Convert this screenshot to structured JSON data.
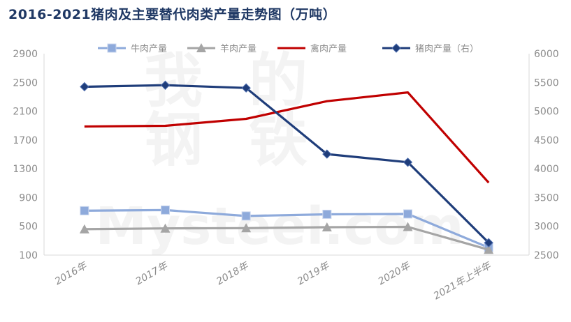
{
  "title": "2016-2021猪肉及主要替代肉类产量走势图（万吨）",
  "chart_data": {
    "type": "line",
    "categories": [
      "2016年",
      "2017年",
      "2018年",
      "2019年",
      "2020年",
      "2021年上半年"
    ],
    "left_axis": {
      "ylim": [
        100,
        2900
      ],
      "ticks": [
        100,
        500,
        900,
        1300,
        1700,
        2100,
        2500,
        2900
      ]
    },
    "right_axis": {
      "ylim": [
        2500,
        6000
      ],
      "ticks": [
        2500,
        3000,
        3500,
        4000,
        4500,
        5000,
        5500,
        6000
      ]
    },
    "legend_position": "top",
    "grid": false,
    "series": [
      {
        "name": "牛肉产量",
        "axis": "left",
        "color": "#8eaadb",
        "marker": "square",
        "values": [
          717,
          726,
          644,
          667,
          672,
          205
        ]
      },
      {
        "name": "羊肉产量",
        "axis": "left",
        "color": "#a5a5a5",
        "marker": "triangle",
        "values": [
          460,
          471,
          475,
          488,
          492,
          175
        ]
      },
      {
        "name": "禽肉产量",
        "axis": "left",
        "color": "#c00000",
        "marker": "none",
        "values": [
          1888,
          1897,
          1994,
          2239,
          2361,
          1107
        ]
      },
      {
        "name": "猪肉产量（右）",
        "axis": "right",
        "color": "#1f3d7a",
        "marker": "diamond",
        "values": [
          5425,
          5452,
          5404,
          4255,
          4113,
          2715
        ]
      }
    ]
  },
  "watermark": {
    "chars": [
      "我",
      "的",
      "钢",
      "铁"
    ],
    "text": "Mysteel.com"
  }
}
